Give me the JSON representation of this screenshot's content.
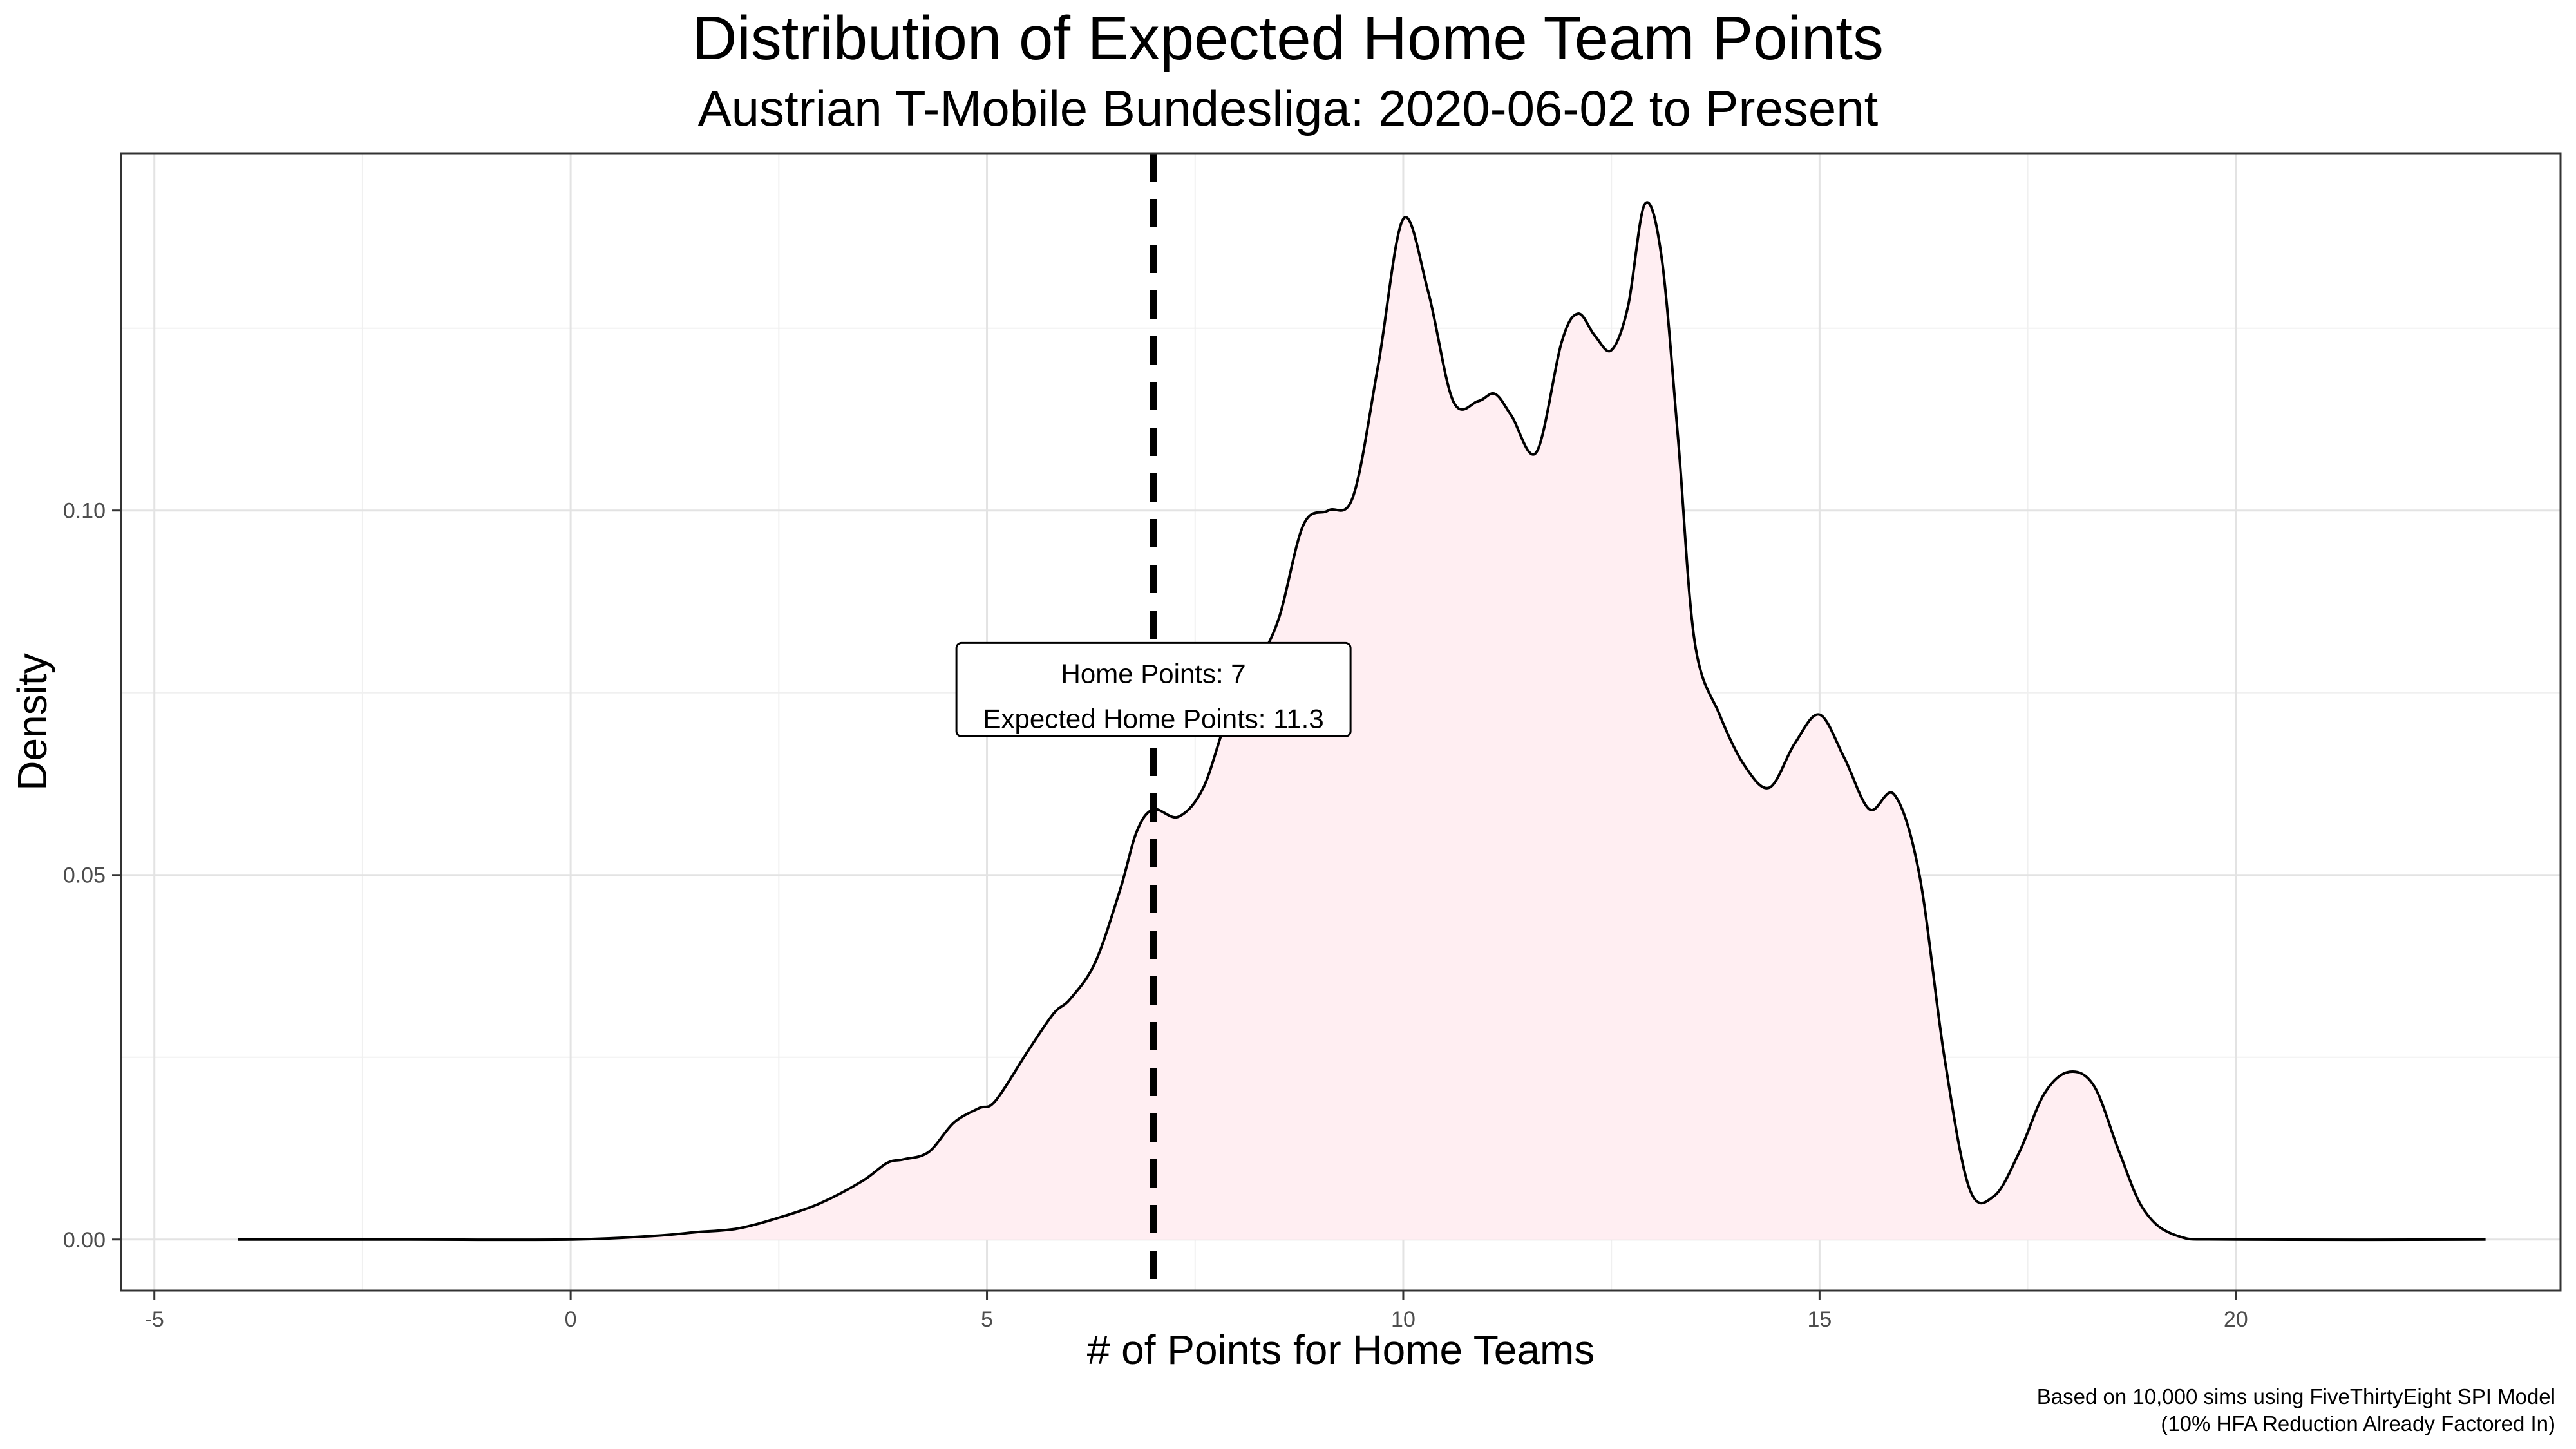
{
  "chart_data": {
    "type": "area",
    "title": "Distribution of Expected Home Team Points",
    "subtitle": "Austrian T-Mobile Bundesliga: 2020-06-02 to Present",
    "xlabel": "# of Points for Home Teams",
    "ylabel": "Density",
    "xlim": [
      -5.4,
      23.9
    ],
    "ylim": [
      -0.007,
      0.149
    ],
    "x_ticks": [
      -5,
      0,
      5,
      10,
      15,
      20
    ],
    "x_tick_labels": [
      "-5",
      "0",
      "5",
      "10",
      "15",
      "20"
    ],
    "y_ticks": [
      0.0,
      0.05,
      0.1
    ],
    "y_tick_labels": [
      "0.00",
      "0.05",
      "0.10"
    ],
    "grid": true,
    "fill_color": "#ffeef2",
    "line_color": "#000000",
    "series": [
      {
        "x": [
          -4,
          -2,
          0,
          1,
          1.5,
          2,
          2.5,
          3,
          3.5,
          3.8,
          4,
          4.3,
          4.6,
          4.9,
          5.1,
          5.5,
          5.8,
          6.0,
          6.3,
          6.6,
          6.8,
          7.0,
          7.3,
          7.6,
          7.9,
          8.2,
          8.5,
          8.8,
          9.1,
          9.4,
          9.7,
          10.0,
          10.3,
          10.6,
          10.9,
          11.1,
          11.3,
          11.6,
          11.9,
          12.1,
          12.3,
          12.5,
          12.7,
          12.9,
          13.1,
          13.3,
          13.5,
          13.8,
          14.1,
          14.4,
          14.7,
          15.0,
          15.3,
          15.6,
          15.9,
          16.2,
          16.5,
          16.8,
          17.1,
          17.4,
          17.7,
          18.0,
          18.3,
          18.6,
          18.9,
          19.3,
          20,
          23
        ],
        "y": [
          0.0,
          0.0,
          0.0,
          0.0005,
          0.001,
          0.0015,
          0.003,
          0.005,
          0.008,
          0.0105,
          0.011,
          0.012,
          0.016,
          0.018,
          0.019,
          0.026,
          0.031,
          0.033,
          0.038,
          0.048,
          0.056,
          0.059,
          0.058,
          0.062,
          0.072,
          0.078,
          0.085,
          0.098,
          0.1,
          0.102,
          0.12,
          0.14,
          0.13,
          0.115,
          0.115,
          0.116,
          0.113,
          0.108,
          0.123,
          0.127,
          0.124,
          0.122,
          0.128,
          0.142,
          0.135,
          0.11,
          0.082,
          0.072,
          0.065,
          0.062,
          0.068,
          0.072,
          0.066,
          0.059,
          0.061,
          0.05,
          0.025,
          0.007,
          0.006,
          0.012,
          0.02,
          0.023,
          0.021,
          0.012,
          0.004,
          0.0005,
          0.0,
          0.0
        ]
      }
    ],
    "vline": {
      "x": 7,
      "style": "dashed"
    },
    "annotation": {
      "x": 7,
      "y": 0.0745,
      "lines": [
        "Home Points: 7",
        "Expected Home Points: 11.3"
      ]
    },
    "caption": [
      "Based on 10,000 sims using FiveThirtyEight SPI Model",
      "(10% HFA Reduction Already Factored In)"
    ]
  }
}
